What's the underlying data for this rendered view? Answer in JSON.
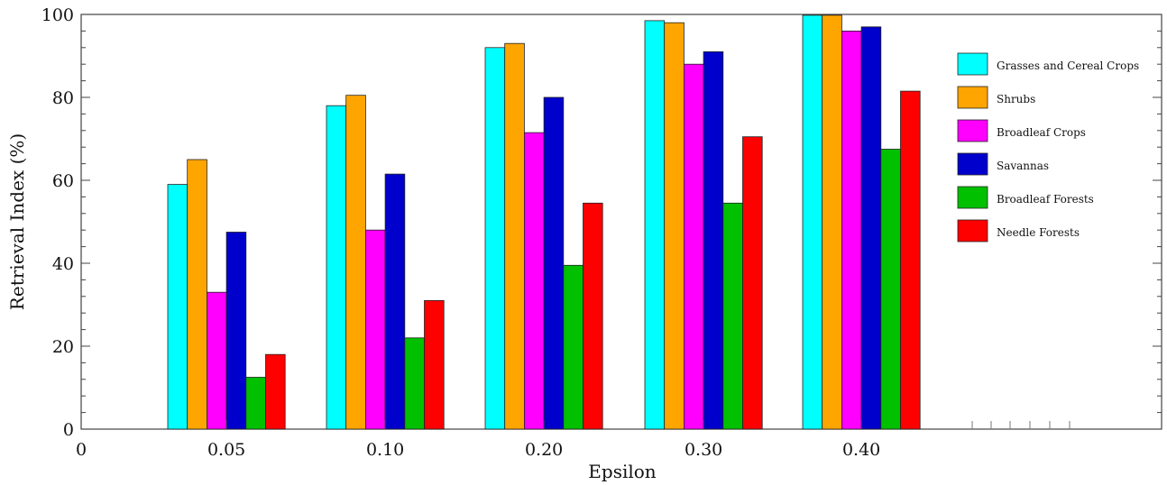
{
  "chart_data": {
    "type": "bar",
    "xlabel": "Epsilon",
    "ylabel": "Retrieval Index (%)",
    "ylim": [
      0,
      100
    ],
    "yticks": [
      0,
      20,
      40,
      60,
      80,
      100
    ],
    "x_origin_label": "0",
    "categories": [
      "0.05",
      "0.10",
      "0.20",
      "0.30",
      "0.40"
    ],
    "grid": false,
    "legend_position": "right",
    "series": [
      {
        "name": "Grasses and Cereal Crops",
        "color": "#00ffff",
        "values": [
          59,
          78,
          92,
          98.5,
          99.8
        ]
      },
      {
        "name": "Shrubs",
        "color": "#ffa500",
        "values": [
          65,
          80.5,
          93,
          98,
          99.8
        ]
      },
      {
        "name": "Broadleaf Crops",
        "color": "#ff00ff",
        "values": [
          33,
          48,
          71.5,
          88,
          96
        ]
      },
      {
        "name": "Savannas",
        "color": "#0000cd",
        "values": [
          47.5,
          61.5,
          80,
          91,
          97
        ]
      },
      {
        "name": "Broadleaf Forests",
        "color": "#00c000",
        "values": [
          12.5,
          22,
          39.5,
          54.5,
          67.5
        ]
      },
      {
        "name": "Needle Forests",
        "color": "#ff0000",
        "values": [
          18,
          31,
          54.5,
          70.5,
          81.5
        ]
      }
    ]
  }
}
